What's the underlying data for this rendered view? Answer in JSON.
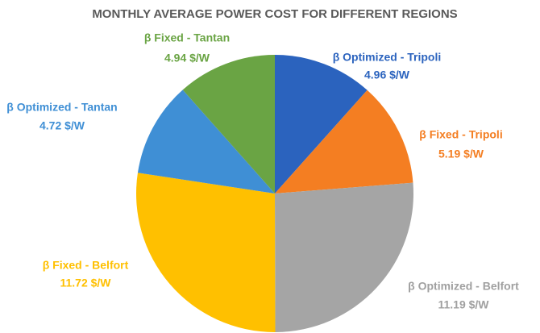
{
  "chart_data": {
    "type": "pie",
    "title": "MONTHLY AVERAGE POWER COST FOR DIFFERENT REGIONS",
    "categories": [
      "β Optimized - Tripoli",
      "β Fixed - Tripoli",
      "β Optimized - Belfort",
      "β Fixed - Belfort",
      "β Optimized - Tantan",
      "β Fixed - Tantan"
    ],
    "values": [
      4.96,
      5.19,
      11.19,
      11.72,
      4.72,
      4.94
    ],
    "value_labels": [
      "4.96 $/W",
      "5.19 $/W",
      "11.19 $/W",
      "11.72 $/W",
      "4.72 $/W",
      "4.94 $/W"
    ],
    "colors": [
      "#2b63be",
      "#f47e22",
      "#a5a5a5",
      "#ffc000",
      "#3f8fd5",
      "#6aa444"
    ]
  }
}
